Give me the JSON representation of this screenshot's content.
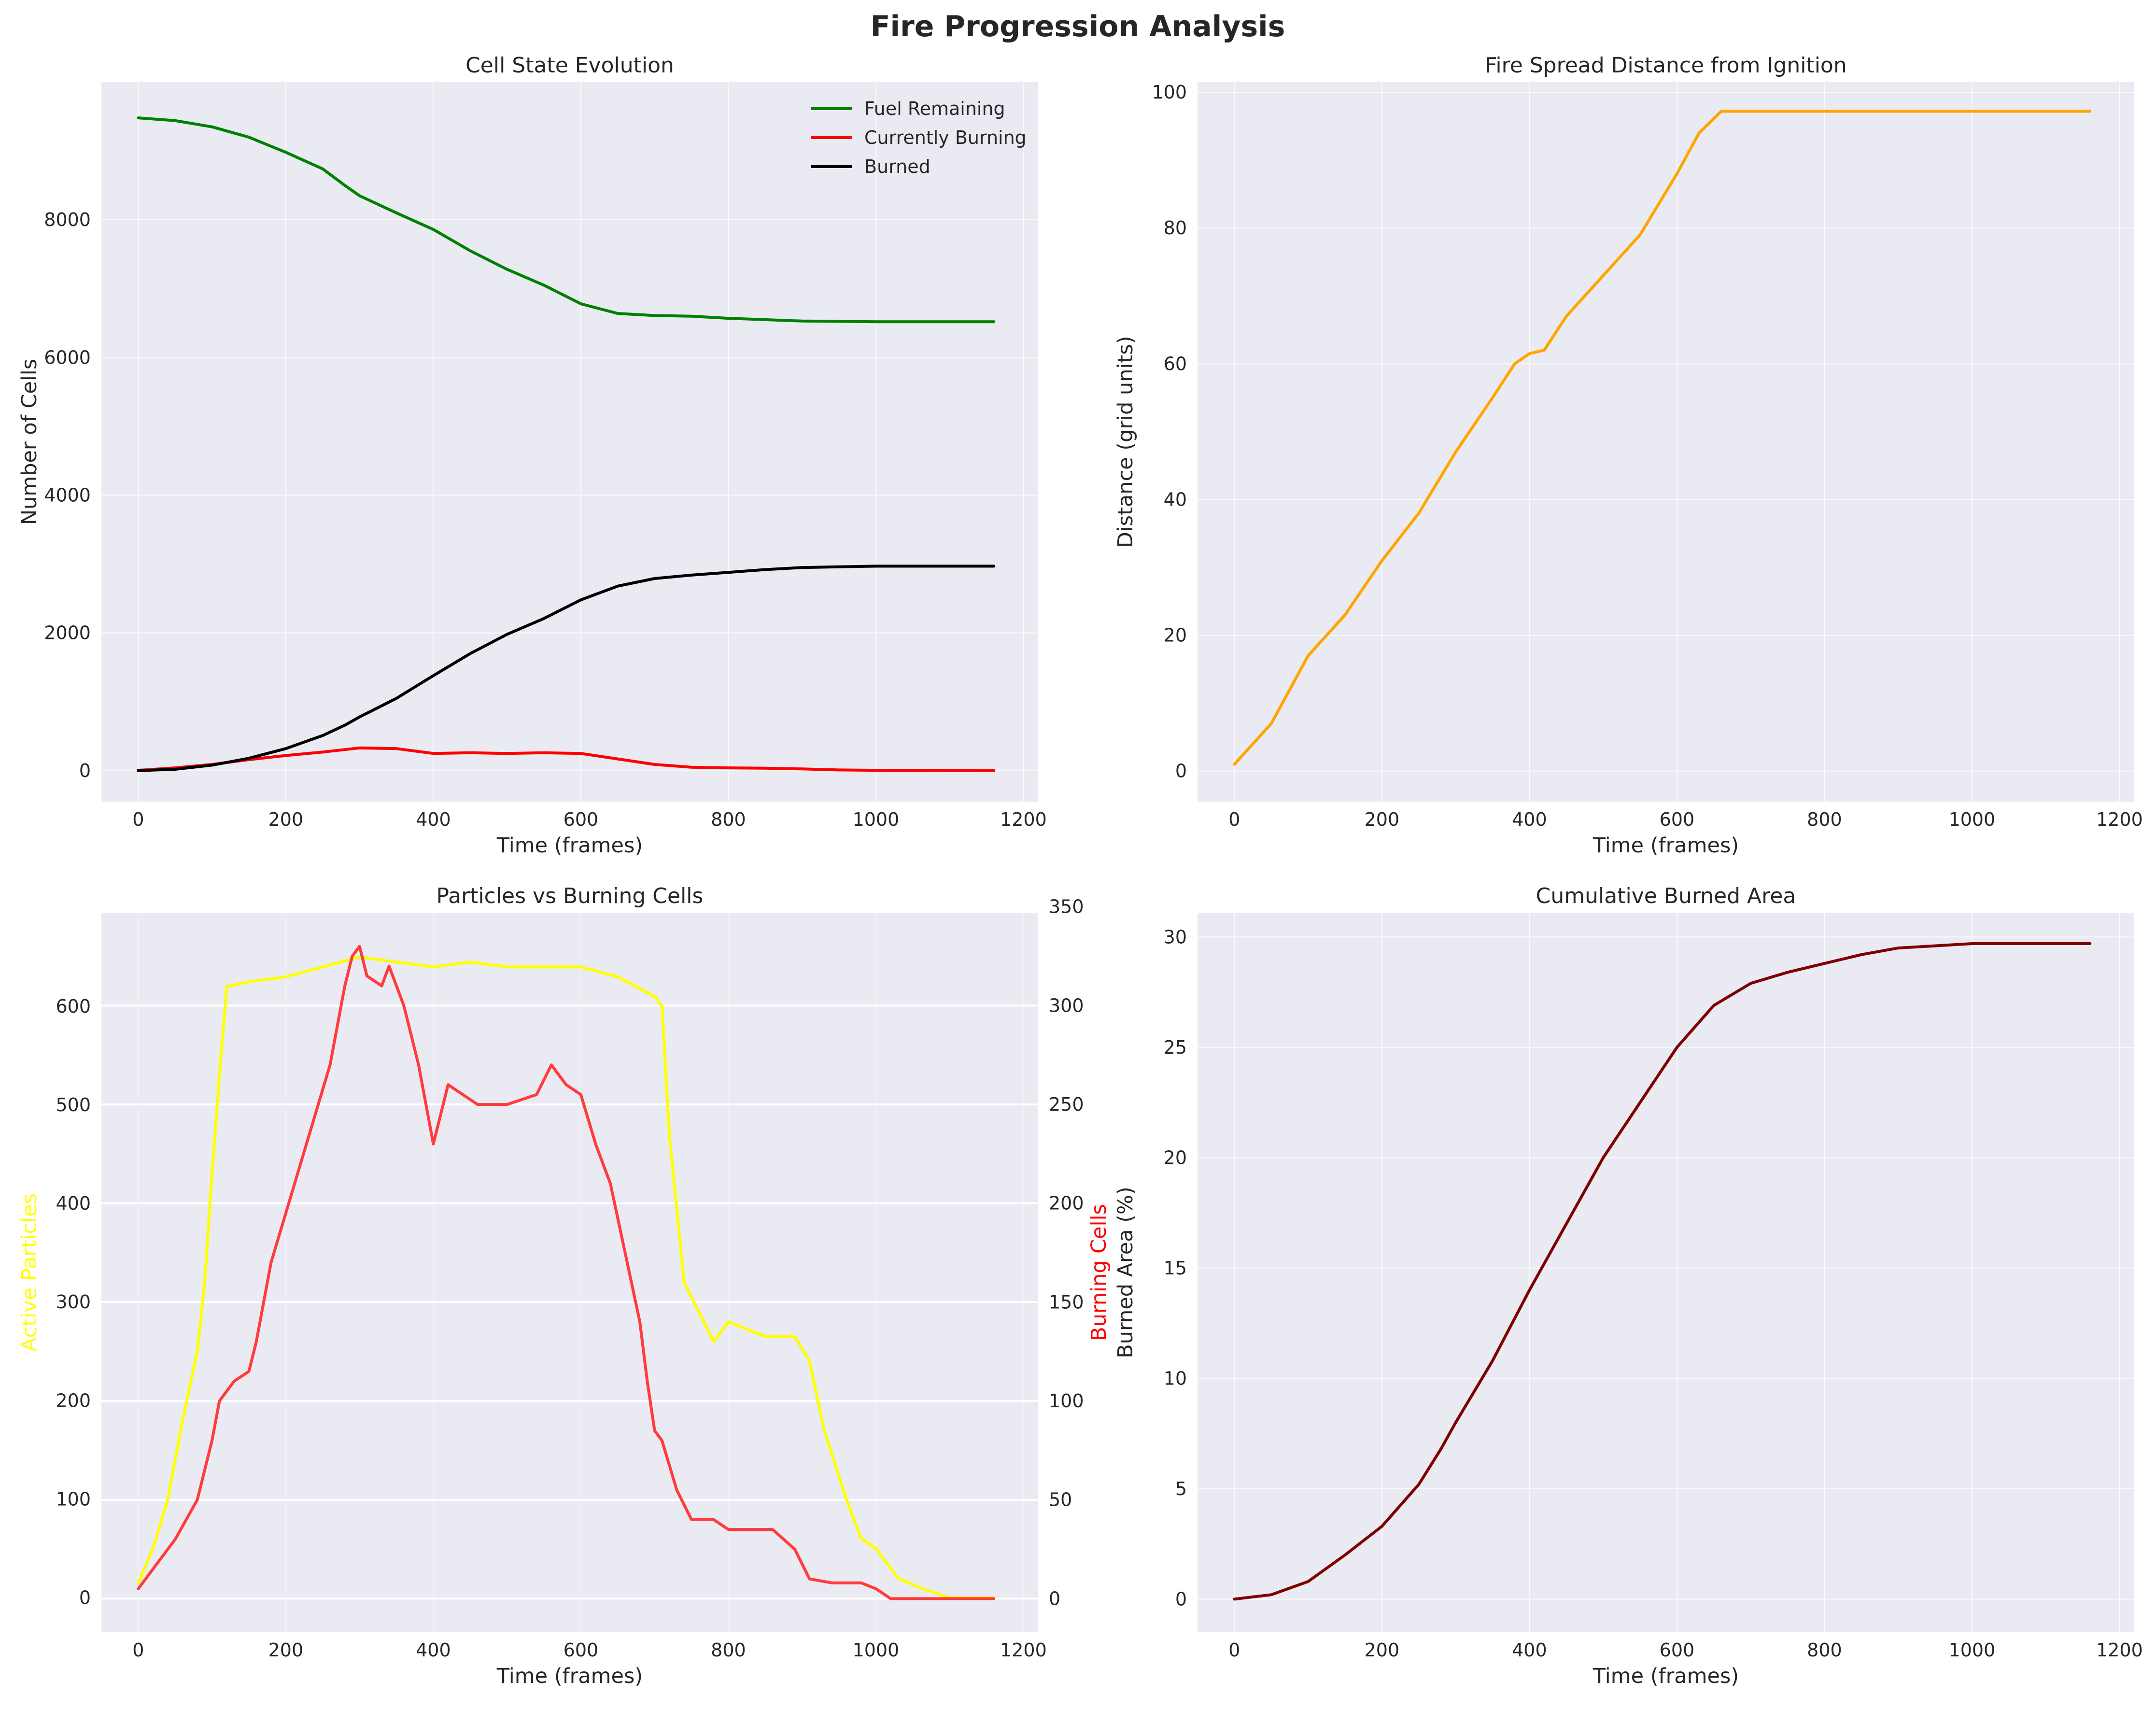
{
  "figure": {
    "title": "Fire Progression Analysis"
  },
  "colors": {
    "panel_bg": "#EAEAF2",
    "grid": "#ffffff",
    "fuel": "#008000",
    "burning": "#FF0000",
    "burned": "#000000",
    "distance": "#FFA500",
    "particles": "#FFFF00",
    "burning_cells": "#FF3B3B",
    "burned_area": "#800000"
  },
  "chart_data": [
    {
      "type": "line",
      "title": "Cell State Evolution",
      "xlabel": "Time (frames)",
      "ylabel": "Number of Cells",
      "xlim": [
        -50,
        1220
      ],
      "ylim": [
        -450,
        10000
      ],
      "xticks": [
        0,
        200,
        400,
        600,
        800,
        1000,
        1200
      ],
      "yticks": [
        0,
        2000,
        4000,
        6000,
        8000
      ],
      "grid": true,
      "legend": "top-right",
      "series": [
        {
          "name": "Fuel Remaining",
          "color": "#008000",
          "points": [
            [
              0,
              9480
            ],
            [
              50,
              9440
            ],
            [
              100,
              9350
            ],
            [
              150,
              9200
            ],
            [
              200,
              8980
            ],
            [
              250,
              8740
            ],
            [
              280,
              8500
            ],
            [
              300,
              8350
            ],
            [
              350,
              8100
            ],
            [
              400,
              7860
            ],
            [
              450,
              7550
            ],
            [
              500,
              7280
            ],
            [
              550,
              7050
            ],
            [
              600,
              6780
            ],
            [
              650,
              6640
            ],
            [
              700,
              6610
            ],
            [
              750,
              6600
            ],
            [
              800,
              6570
            ],
            [
              900,
              6530
            ],
            [
              1000,
              6520
            ],
            [
              1160,
              6520
            ]
          ]
        },
        {
          "name": "Currently Burning",
          "color": "#FF0000",
          "points": [
            [
              0,
              5
            ],
            [
              50,
              40
            ],
            [
              100,
              90
            ],
            [
              150,
              160
            ],
            [
              200,
              220
            ],
            [
              250,
              270
            ],
            [
              300,
              330
            ],
            [
              350,
              320
            ],
            [
              400,
              250
            ],
            [
              450,
              260
            ],
            [
              500,
              250
            ],
            [
              550,
              260
            ],
            [
              600,
              250
            ],
            [
              650,
              170
            ],
            [
              700,
              90
            ],
            [
              750,
              50
            ],
            [
              800,
              40
            ],
            [
              850,
              35
            ],
            [
              900,
              25
            ],
            [
              950,
              10
            ],
            [
              1000,
              5
            ],
            [
              1160,
              0
            ]
          ]
        },
        {
          "name": "Burned",
          "color": "#000000",
          "points": [
            [
              0,
              0
            ],
            [
              50,
              20
            ],
            [
              100,
              80
            ],
            [
              150,
              180
            ],
            [
              200,
              320
            ],
            [
              250,
              510
            ],
            [
              280,
              660
            ],
            [
              300,
              780
            ],
            [
              350,
              1050
            ],
            [
              400,
              1380
            ],
            [
              450,
              1700
            ],
            [
              500,
              1980
            ],
            [
              550,
              2210
            ],
            [
              600,
              2480
            ],
            [
              650,
              2680
            ],
            [
              700,
              2790
            ],
            [
              750,
              2840
            ],
            [
              800,
              2880
            ],
            [
              850,
              2920
            ],
            [
              900,
              2950
            ],
            [
              950,
              2960
            ],
            [
              1000,
              2970
            ],
            [
              1160,
              2970
            ]
          ]
        }
      ]
    },
    {
      "type": "line",
      "title": "Fire Spread Distance from Ignition",
      "xlabel": "Time (frames)",
      "ylabel": "Distance (grid units)",
      "xlim": [
        -50,
        1220
      ],
      "ylim": [
        -4.5,
        101.5
      ],
      "xticks": [
        0,
        200,
        400,
        600,
        800,
        1000,
        1200
      ],
      "yticks": [
        0,
        20,
        40,
        60,
        80,
        100
      ],
      "grid": true,
      "series": [
        {
          "name": "",
          "color": "#FFA500",
          "points": [
            [
              0,
              1
            ],
            [
              50,
              7
            ],
            [
              100,
              17
            ],
            [
              150,
              23
            ],
            [
              200,
              31
            ],
            [
              250,
              38
            ],
            [
              300,
              47
            ],
            [
              350,
              55
            ],
            [
              380,
              60
            ],
            [
              400,
              61.5
            ],
            [
              420,
              62
            ],
            [
              450,
              67
            ],
            [
              500,
              73
            ],
            [
              550,
              79
            ],
            [
              600,
              88
            ],
            [
              630,
              94
            ],
            [
              660,
              97.2
            ],
            [
              700,
              97.2
            ],
            [
              1160,
              97.2
            ]
          ]
        }
      ]
    },
    {
      "type": "line",
      "title": "Particles vs Burning Cells",
      "xlabel": "Time (frames)",
      "ylabel": "Active Particles",
      "ylabel_right": "Burning Cells",
      "xlim": [
        -50,
        1220
      ],
      "ylim": [
        -35,
        695
      ],
      "ylim_right": [
        -17,
        347
      ],
      "xticks": [
        0,
        200,
        400,
        600,
        800,
        1000,
        1200
      ],
      "yticks": [
        0,
        100,
        200,
        300,
        400,
        500,
        600
      ],
      "yticks_right": [
        0,
        50,
        100,
        150,
        200,
        250,
        300,
        350
      ],
      "grid": true,
      "series": [
        {
          "name": "Active Particles",
          "axis": "left",
          "color": "#FFFF00",
          "points": [
            [
              0,
              15
            ],
            [
              20,
              50
            ],
            [
              40,
              100
            ],
            [
              60,
              180
            ],
            [
              80,
              250
            ],
            [
              90,
              320
            ],
            [
              100,
              430
            ],
            [
              110,
              530
            ],
            [
              120,
              620
            ],
            [
              150,
              625
            ],
            [
              200,
              630
            ],
            [
              250,
              640
            ],
            [
              300,
              650
            ],
            [
              350,
              645
            ],
            [
              400,
              640
            ],
            [
              450,
              645
            ],
            [
              500,
              640
            ],
            [
              550,
              640
            ],
            [
              600,
              640
            ],
            [
              650,
              630
            ],
            [
              700,
              610
            ],
            [
              710,
              600
            ],
            [
              720,
              470
            ],
            [
              740,
              320
            ],
            [
              760,
              290
            ],
            [
              780,
              260
            ],
            [
              800,
              280
            ],
            [
              850,
              265
            ],
            [
              890,
              265
            ],
            [
              910,
              240
            ],
            [
              930,
              170
            ],
            [
              960,
              100
            ],
            [
              980,
              60
            ],
            [
              1000,
              50
            ],
            [
              1030,
              20
            ],
            [
              1060,
              10
            ],
            [
              1080,
              5
            ],
            [
              1100,
              0
            ],
            [
              1160,
              0
            ]
          ]
        },
        {
          "name": "Burning Cells",
          "axis": "right",
          "color": "#FF3B3B",
          "points": [
            [
              0,
              5
            ],
            [
              30,
              20
            ],
            [
              50,
              30
            ],
            [
              80,
              50
            ],
            [
              100,
              80
            ],
            [
              110,
              100
            ],
            [
              130,
              110
            ],
            [
              150,
              115
            ],
            [
              160,
              130
            ],
            [
              180,
              170
            ],
            [
              200,
              195
            ],
            [
              220,
              220
            ],
            [
              240,
              245
            ],
            [
              260,
              270
            ],
            [
              280,
              310
            ],
            [
              290,
              325
            ],
            [
              300,
              330
            ],
            [
              310,
              315
            ],
            [
              330,
              310
            ],
            [
              340,
              320
            ],
            [
              360,
              300
            ],
            [
              380,
              270
            ],
            [
              400,
              230
            ],
            [
              420,
              260
            ],
            [
              440,
              255
            ],
            [
              460,
              250
            ],
            [
              500,
              250
            ],
            [
              540,
              255
            ],
            [
              560,
              270
            ],
            [
              580,
              260
            ],
            [
              600,
              255
            ],
            [
              620,
              230
            ],
            [
              640,
              210
            ],
            [
              660,
              175
            ],
            [
              680,
              140
            ],
            [
              690,
              110
            ],
            [
              700,
              85
            ],
            [
              710,
              80
            ],
            [
              730,
              55
            ],
            [
              750,
              40
            ],
            [
              780,
              40
            ],
            [
              800,
              35
            ],
            [
              830,
              35
            ],
            [
              860,
              35
            ],
            [
              890,
              25
            ],
            [
              910,
              10
            ],
            [
              940,
              8
            ],
            [
              980,
              8
            ],
            [
              1000,
              5
            ],
            [
              1020,
              0
            ],
            [
              1160,
              0
            ]
          ]
        }
      ]
    },
    {
      "type": "line",
      "title": "Cumulative Burned Area",
      "xlabel": "Time (frames)",
      "ylabel": "Burned Area (%)",
      "xlim": [
        -50,
        1220
      ],
      "ylim": [
        -1.5,
        31.1
      ],
      "xticks": [
        0,
        200,
        400,
        600,
        800,
        1000,
        1200
      ],
      "yticks": [
        0,
        5,
        10,
        15,
        20,
        25,
        30
      ],
      "grid": true,
      "series": [
        {
          "name": "",
          "color": "#800000",
          "points": [
            [
              0,
              0
            ],
            [
              50,
              0.2
            ],
            [
              100,
              0.8
            ],
            [
              150,
              2
            ],
            [
              200,
              3.3
            ],
            [
              250,
              5.2
            ],
            [
              280,
              6.8
            ],
            [
              300,
              8
            ],
            [
              350,
              10.8
            ],
            [
              400,
              14
            ],
            [
              450,
              17
            ],
            [
              500,
              20
            ],
            [
              550,
              22.5
            ],
            [
              600,
              25
            ],
            [
              650,
              26.9
            ],
            [
              700,
              27.9
            ],
            [
              750,
              28.4
            ],
            [
              800,
              28.8
            ],
            [
              850,
              29.2
            ],
            [
              900,
              29.5
            ],
            [
              950,
              29.6
            ],
            [
              1000,
              29.7
            ],
            [
              1160,
              29.7
            ]
          ]
        }
      ]
    }
  ]
}
